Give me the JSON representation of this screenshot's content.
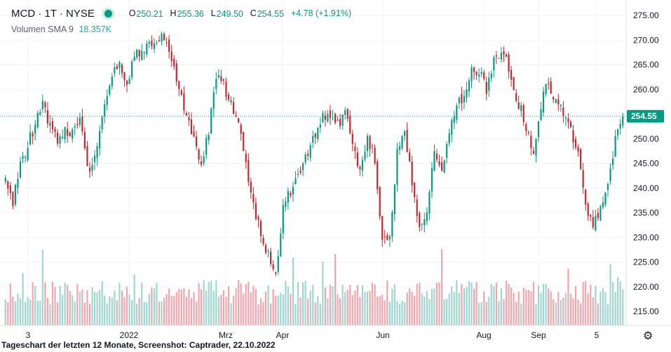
{
  "header": {
    "symbol": "MCD · 1T · NYSE",
    "open_label": "O",
    "open": "250.21",
    "high_label": "H",
    "high": "255.36",
    "low_label": "L",
    "low": "249.50",
    "close_label": "C",
    "close": "254.55",
    "change": "+4.78 (+1.91%)"
  },
  "volume_indicator": {
    "label": "Volumen SMA 9",
    "value": "18.357K"
  },
  "caption": "Tageschart der letzten 12 Monate, Screenshot: Captrader, 22.10.2022",
  "colors": {
    "up": "#089981",
    "down": "#c8262f",
    "vol_up": "#9fd6cd",
    "vol_down": "#f3a5ad",
    "grid": "#f0f3fa"
  },
  "chart_data": {
    "type": "candlestick",
    "y_ticks": [
      "275.00",
      "270.00",
      "265.00",
      "260.00",
      "255.00",
      "250.00",
      "245.00",
      "240.00",
      "235.00",
      "230.00",
      "225.00",
      "220.00",
      "215.00"
    ],
    "x_ticks": [
      "3",
      "2022",
      "Mrz",
      "Apr",
      "Jun",
      "Aug",
      "Sep",
      "5"
    ],
    "last_price_label": "254.55",
    "last_price": 254.55,
    "ylim": [
      212,
      277
    ],
    "anchors": [
      241,
      237.5,
      245,
      249,
      253,
      257,
      252,
      250,
      252,
      251,
      255,
      243,
      248,
      256,
      262,
      265,
      260,
      266,
      268,
      270,
      269,
      271,
      265,
      261,
      255,
      250,
      244,
      252,
      262,
      261,
      257,
      252,
      244,
      236,
      230,
      226,
      223,
      238,
      240,
      243,
      247,
      251,
      254,
      255,
      252,
      256,
      250,
      242,
      250,
      247,
      230,
      229,
      247,
      252,
      241,
      233,
      236,
      248,
      244,
      252,
      256,
      260,
      265,
      263,
      260,
      266,
      268,
      263,
      258,
      254,
      246,
      256,
      261,
      258,
      256,
      252,
      248,
      237,
      232,
      235,
      241,
      250,
      254
    ]
  }
}
